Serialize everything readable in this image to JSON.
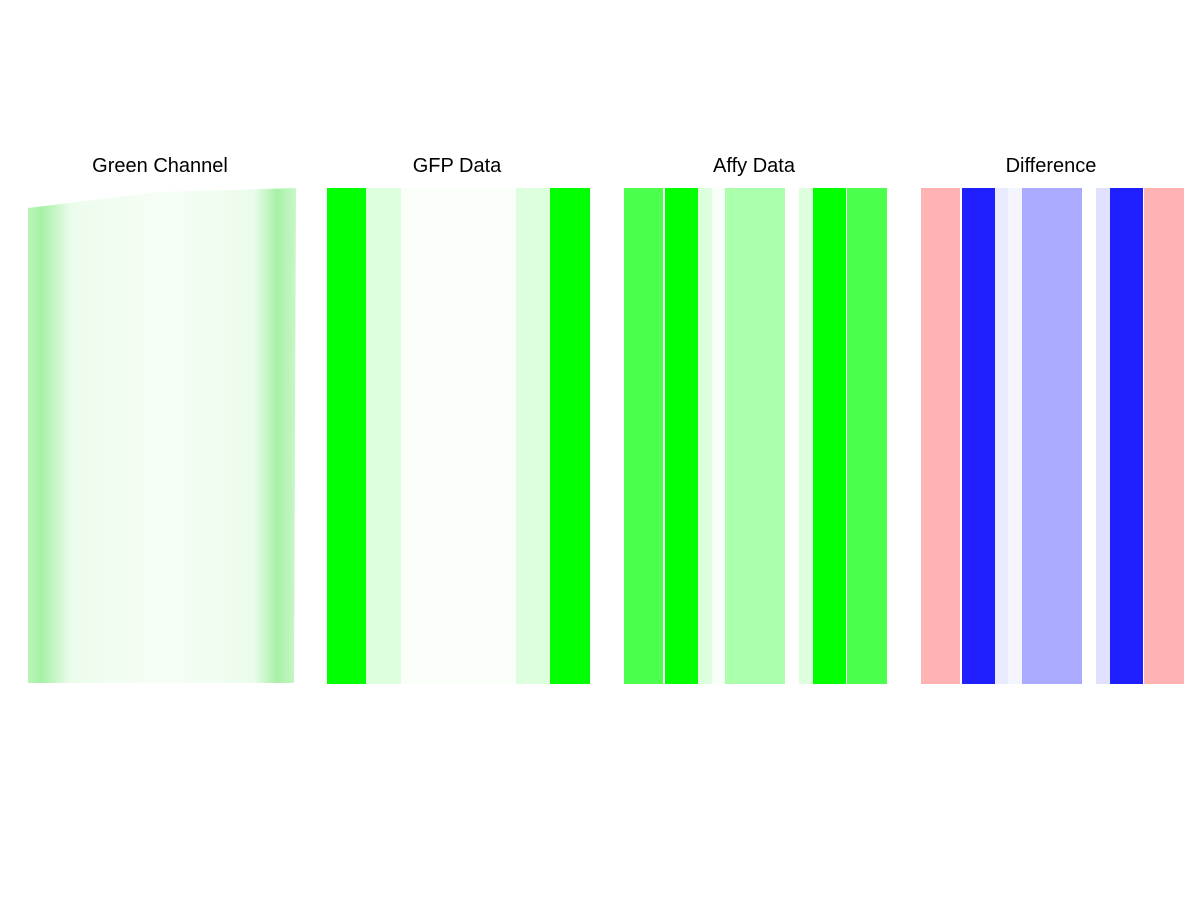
{
  "panels": [
    {
      "title": "Green Channel"
    },
    {
      "title": "GFP Data"
    },
    {
      "title": "Affy Data"
    },
    {
      "title": "Difference"
    }
  ]
}
